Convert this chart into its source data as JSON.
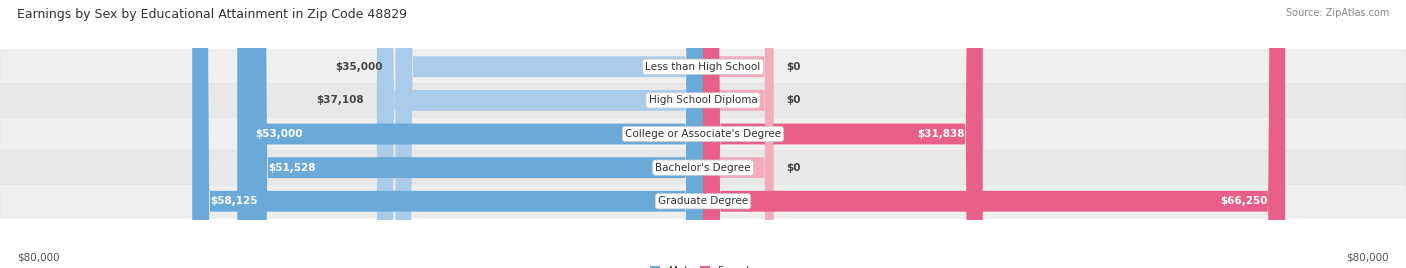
{
  "title": "Earnings by Sex by Educational Attainment in Zip Code 48829",
  "source": "Source: ZipAtlas.com",
  "categories": [
    "Less than High School",
    "High School Diploma",
    "College or Associate's Degree",
    "Bachelor's Degree",
    "Graduate Degree"
  ],
  "male_values": [
    35000,
    37108,
    53000,
    51528,
    58125
  ],
  "female_values": [
    0,
    0,
    31838,
    0,
    66250
  ],
  "male_labels": [
    "$35,000",
    "$37,108",
    "$53,000",
    "$51,528",
    "$58,125"
  ],
  "female_labels": [
    "$0",
    "$0",
    "$31,838",
    "$0",
    "$66,250"
  ],
  "male_color_light": "#A8CCEA",
  "male_color_dark": "#6BAAD8",
  "female_color_light": "#F5AABE",
  "female_color_dark": "#E8608A",
  "axis_max": 80000,
  "x_left_label": "$80,000",
  "x_right_label": "$80,000",
  "background_color": "#FFFFFF",
  "row_colors": [
    "#EFEFEF",
    "#E8E8E8",
    "#EFEFEF",
    "#E8E8E8",
    "#EFEFEF"
  ],
  "title_fontsize": 9,
  "source_fontsize": 7,
  "bar_fontsize": 7.5,
  "category_fontsize": 7.5,
  "axis_fontsize": 7.5,
  "female_stub_value": 8000
}
